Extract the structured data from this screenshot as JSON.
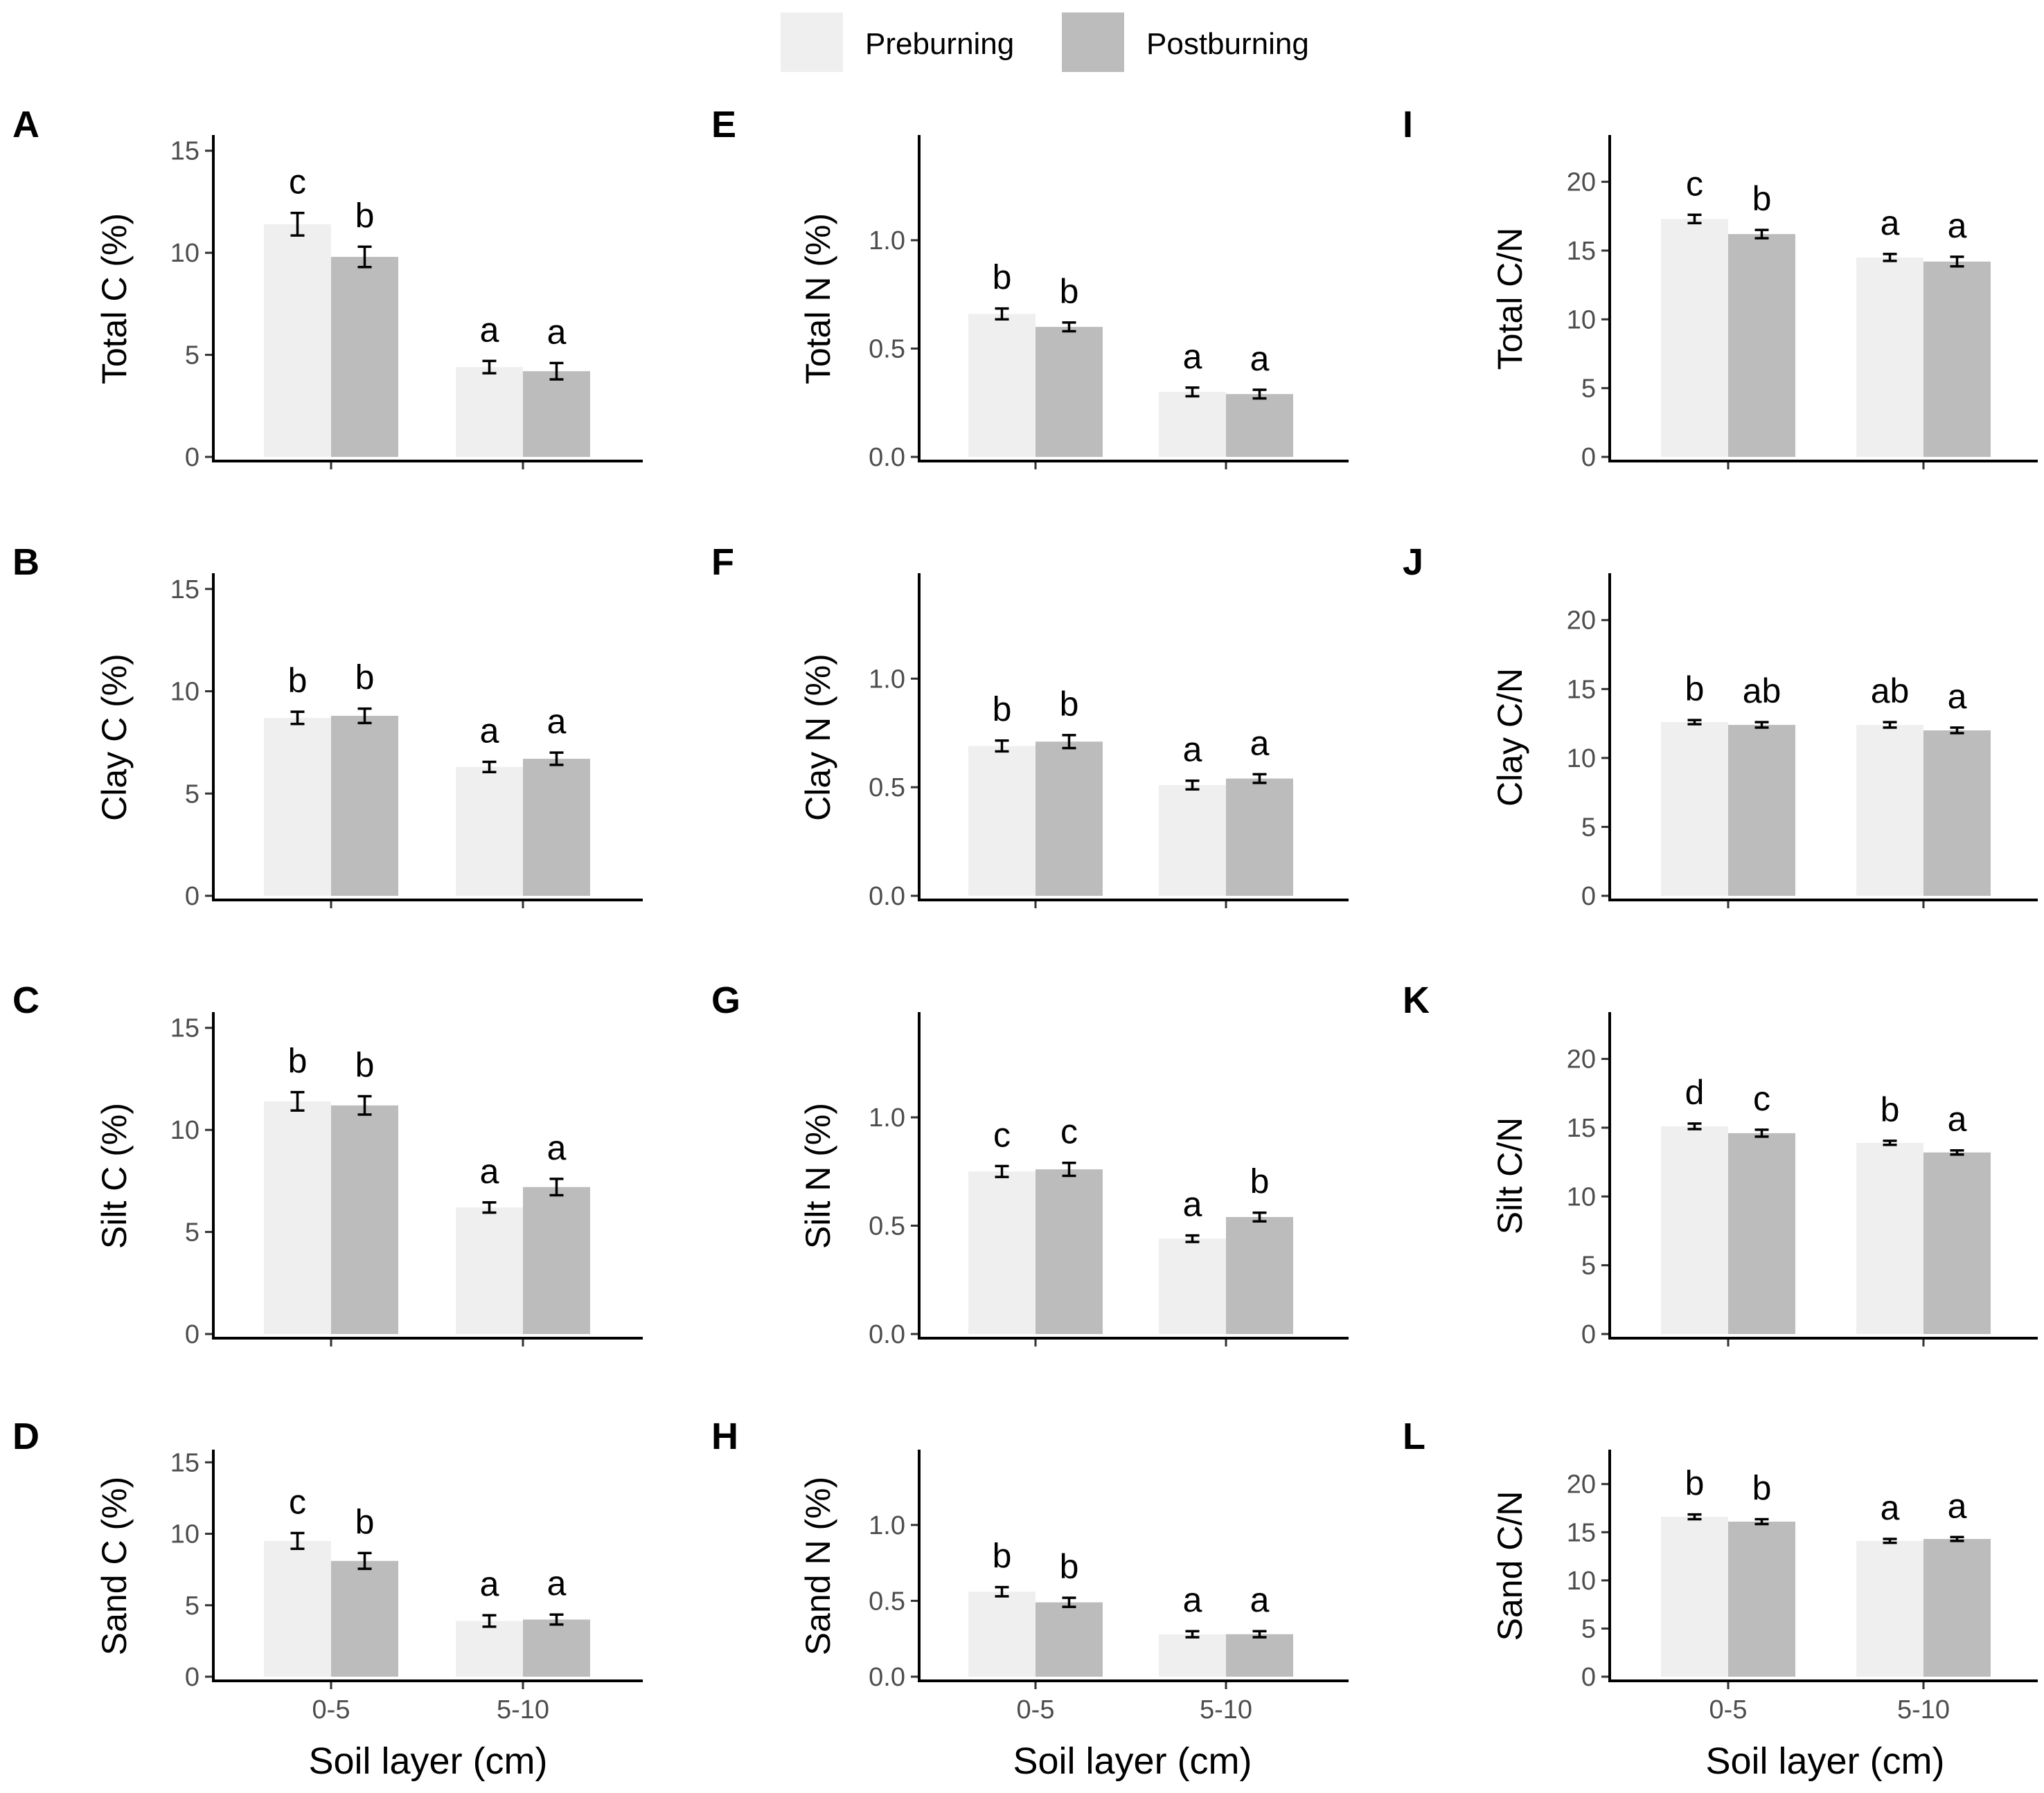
{
  "legend": {
    "items": [
      {
        "label": "Preburning",
        "color": "#efefef"
      },
      {
        "label": "Postburning",
        "color": "#bcbcbc"
      }
    ]
  },
  "x_axis_label": "Soil layer (cm)",
  "chart_data": [
    {
      "panel": "A",
      "type": "bar",
      "ylabel": "Total C (%)",
      "categories": [
        "0-5",
        "5-10"
      ],
      "ylim": [
        0,
        15.5
      ],
      "yticks": [
        0,
        5,
        10,
        15
      ],
      "ytick_labels": [
        "0",
        "5",
        "10",
        "15"
      ],
      "series": [
        {
          "name": "Preburning",
          "values": [
            11.4,
            4.4
          ],
          "errors": [
            0.55,
            0.3
          ],
          "labels": [
            "c",
            "a"
          ]
        },
        {
          "name": "Postburning",
          "values": [
            9.8,
            4.2
          ],
          "errors": [
            0.5,
            0.4
          ],
          "labels": [
            "b",
            "a"
          ]
        }
      ]
    },
    {
      "panel": "B",
      "type": "bar",
      "ylabel": "Clay C (%)",
      "categories": [
        "0-5",
        "5-10"
      ],
      "ylim": [
        0,
        15.5
      ],
      "yticks": [
        0,
        5,
        10,
        15
      ],
      "ytick_labels": [
        "0",
        "5",
        "10",
        "15"
      ],
      "series": [
        {
          "name": "Preburning",
          "values": [
            8.7,
            6.3
          ],
          "errors": [
            0.3,
            0.25
          ],
          "labels": [
            "b",
            "a"
          ]
        },
        {
          "name": "Postburning",
          "values": [
            8.8,
            6.7
          ],
          "errors": [
            0.35,
            0.3
          ],
          "labels": [
            "b",
            "a"
          ]
        }
      ]
    },
    {
      "panel": "C",
      "type": "bar",
      "ylabel": "Silt C (%)",
      "categories": [
        "0-5",
        "5-10"
      ],
      "ylim": [
        0,
        15.5
      ],
      "yticks": [
        0,
        5,
        10,
        15
      ],
      "ytick_labels": [
        "0",
        "5",
        "10",
        "15"
      ],
      "series": [
        {
          "name": "Preburning",
          "values": [
            11.4,
            6.2
          ],
          "errors": [
            0.45,
            0.25
          ],
          "labels": [
            "b",
            "a"
          ]
        },
        {
          "name": "Postburning",
          "values": [
            11.2,
            7.2
          ],
          "errors": [
            0.45,
            0.4
          ],
          "labels": [
            "b",
            "a"
          ]
        }
      ]
    },
    {
      "panel": "D",
      "type": "bar",
      "ylabel": "Sand C (%)",
      "categories": [
        "0-5",
        "5-10"
      ],
      "ylim": [
        0,
        15.5
      ],
      "yticks": [
        0,
        5,
        10,
        15
      ],
      "ytick_labels": [
        "0",
        "5",
        "10",
        "15"
      ],
      "series": [
        {
          "name": "Preburning",
          "values": [
            9.5,
            3.9
          ],
          "errors": [
            0.55,
            0.4
          ],
          "labels": [
            "c",
            "a"
          ]
        },
        {
          "name": "Postburning",
          "values": [
            8.1,
            4.0
          ],
          "errors": [
            0.55,
            0.35
          ],
          "labels": [
            "b",
            "a"
          ]
        }
      ]
    },
    {
      "panel": "E",
      "type": "bar",
      "ylabel": "Total N (%)",
      "categories": [
        "0-5",
        "5-10"
      ],
      "ylim": [
        0,
        1.46
      ],
      "yticks": [
        0,
        0.5,
        1.0
      ],
      "ytick_labels": [
        "0.0",
        "0.5",
        "1.0"
      ],
      "series": [
        {
          "name": "Preburning",
          "values": [
            0.66,
            0.3
          ],
          "errors": [
            0.025,
            0.02
          ],
          "labels": [
            "b",
            "a"
          ]
        },
        {
          "name": "Postburning",
          "values": [
            0.6,
            0.29
          ],
          "errors": [
            0.02,
            0.02
          ],
          "labels": [
            "b",
            "a"
          ]
        }
      ]
    },
    {
      "panel": "F",
      "type": "bar",
      "ylabel": "Clay N (%)",
      "categories": [
        "0-5",
        "5-10"
      ],
      "ylim": [
        0,
        1.46
      ],
      "yticks": [
        0,
        0.5,
        1.0
      ],
      "ytick_labels": [
        "0.0",
        "0.5",
        "1.0"
      ],
      "series": [
        {
          "name": "Preburning",
          "values": [
            0.69,
            0.51
          ],
          "errors": [
            0.025,
            0.02
          ],
          "labels": [
            "b",
            "a"
          ]
        },
        {
          "name": "Postburning",
          "values": [
            0.71,
            0.54
          ],
          "errors": [
            0.03,
            0.02
          ],
          "labels": [
            "b",
            "a"
          ]
        }
      ]
    },
    {
      "panel": "G",
      "type": "bar",
      "ylabel": "Silt N (%)",
      "categories": [
        "0-5",
        "5-10"
      ],
      "ylim": [
        0,
        1.46
      ],
      "yticks": [
        0,
        0.5,
        1.0
      ],
      "ytick_labels": [
        "0.0",
        "0.5",
        "1.0"
      ],
      "series": [
        {
          "name": "Preburning",
          "values": [
            0.75,
            0.44
          ],
          "errors": [
            0.025,
            0.015
          ],
          "labels": [
            "c",
            "a"
          ]
        },
        {
          "name": "Postburning",
          "values": [
            0.76,
            0.54
          ],
          "errors": [
            0.03,
            0.02
          ],
          "labels": [
            "c",
            "b"
          ]
        }
      ]
    },
    {
      "panel": "H",
      "type": "bar",
      "ylabel": "Sand N (%)",
      "categories": [
        "0-5",
        "5-10"
      ],
      "ylim": [
        0,
        1.46
      ],
      "yticks": [
        0,
        0.5,
        1.0
      ],
      "ytick_labels": [
        "0.0",
        "0.5",
        "1.0"
      ],
      "series": [
        {
          "name": "Preburning",
          "values": [
            0.56,
            0.28
          ],
          "errors": [
            0.03,
            0.02
          ],
          "labels": [
            "b",
            "a"
          ]
        },
        {
          "name": "Postburning",
          "values": [
            0.49,
            0.28
          ],
          "errors": [
            0.03,
            0.02
          ],
          "labels": [
            "b",
            "a"
          ]
        }
      ]
    },
    {
      "panel": "I",
      "type": "bar",
      "ylabel": "Total C/N",
      "categories": [
        "0-5",
        "5-10"
      ],
      "ylim": [
        0,
        23
      ],
      "yticks": [
        0,
        5,
        10,
        15,
        20
      ],
      "ytick_labels": [
        "0",
        "5",
        "10",
        "15",
        "20"
      ],
      "series": [
        {
          "name": "Preburning",
          "values": [
            17.3,
            14.5
          ],
          "errors": [
            0.3,
            0.25
          ],
          "labels": [
            "c",
            "a"
          ]
        },
        {
          "name": "Postburning",
          "values": [
            16.2,
            14.2
          ],
          "errors": [
            0.3,
            0.35
          ],
          "labels": [
            "b",
            "a"
          ]
        }
      ]
    },
    {
      "panel": "J",
      "type": "bar",
      "ylabel": "Clay C/N",
      "categories": [
        "0-5",
        "5-10"
      ],
      "ylim": [
        0,
        23
      ],
      "yticks": [
        0,
        5,
        10,
        15,
        20
      ],
      "ytick_labels": [
        "0",
        "5",
        "10",
        "15",
        "20"
      ],
      "series": [
        {
          "name": "Preburning",
          "values": [
            12.6,
            12.4
          ],
          "errors": [
            0.15,
            0.2
          ],
          "labels": [
            "b",
            "ab"
          ]
        },
        {
          "name": "Postburning",
          "values": [
            12.4,
            12.0
          ],
          "errors": [
            0.2,
            0.2
          ],
          "labels": [
            "ab",
            "a"
          ]
        }
      ]
    },
    {
      "panel": "K",
      "type": "bar",
      "ylabel": "Silt C/N",
      "categories": [
        "0-5",
        "5-10"
      ],
      "ylim": [
        0,
        23
      ],
      "yticks": [
        0,
        5,
        10,
        15,
        20
      ],
      "ytick_labels": [
        "0",
        "5",
        "10",
        "15",
        "20"
      ],
      "series": [
        {
          "name": "Preburning",
          "values": [
            15.1,
            13.9
          ],
          "errors": [
            0.2,
            0.15
          ],
          "labels": [
            "d",
            "b"
          ]
        },
        {
          "name": "Postburning",
          "values": [
            14.6,
            13.2
          ],
          "errors": [
            0.25,
            0.15
          ],
          "labels": [
            "c",
            "a"
          ]
        }
      ]
    },
    {
      "panel": "L",
      "type": "bar",
      "ylabel": "Sand C/N",
      "categories": [
        "0-5",
        "5-10"
      ],
      "ylim": [
        0,
        23
      ],
      "yticks": [
        0,
        5,
        10,
        15,
        20
      ],
      "ytick_labels": [
        "0",
        "5",
        "10",
        "15",
        "20"
      ],
      "series": [
        {
          "name": "Preburning",
          "values": [
            16.6,
            14.1
          ],
          "errors": [
            0.25,
            0.2
          ],
          "labels": [
            "b",
            "a"
          ]
        },
        {
          "name": "Postburning",
          "values": [
            16.1,
            14.3
          ],
          "errors": [
            0.25,
            0.2
          ],
          "labels": [
            "b",
            "a"
          ]
        }
      ]
    }
  ]
}
